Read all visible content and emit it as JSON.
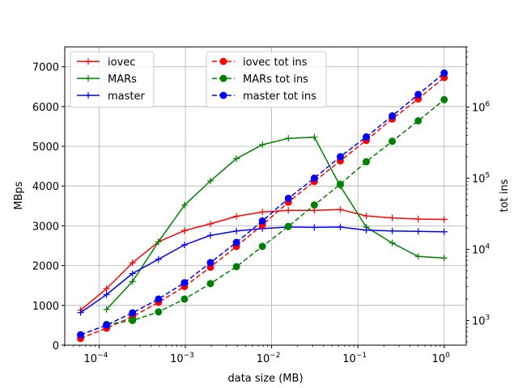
{
  "chart_data": {
    "type": "line",
    "xlabel": "data size (MB)",
    "ylabel": "MBps",
    "y2label": "tot ins",
    "x_scale": "log",
    "xlim": [
      4e-05,
      1.8
    ],
    "ylim": [
      0,
      7500
    ],
    "y2_scale": "log",
    "y2lim": [
      450,
      7000000
    ],
    "grid": true,
    "x_ticks": [
      {
        "base": "10",
        "exp": "−4",
        "value": 0.0001
      },
      {
        "base": "10",
        "exp": "−3",
        "value": 0.001
      },
      {
        "base": "10",
        "exp": "−2",
        "value": 0.01
      },
      {
        "base": "10",
        "exp": "−1",
        "value": 0.1
      },
      {
        "base": "10",
        "exp": "0",
        "value": 1
      }
    ],
    "y_ticks": [
      "0",
      "1000",
      "2000",
      "3000",
      "4000",
      "5000",
      "6000",
      "7000"
    ],
    "y2_ticks": [
      {
        "base": "10",
        "exp": "3",
        "value": 1000
      },
      {
        "base": "10",
        "exp": "4",
        "value": 10000
      },
      {
        "base": "10",
        "exp": "5",
        "value": 100000
      },
      {
        "base": "10",
        "exp": "6",
        "value": 1000000
      }
    ],
    "legend_left": {
      "placement": "upper-left",
      "entries": [
        "iovec",
        "MARs",
        "master"
      ]
    },
    "legend_right": {
      "placement": "upper-center",
      "entries": [
        "iovec tot ins",
        "MARs tot ins",
        "master tot ins"
      ]
    },
    "x": [
      6.104e-05,
      0.00012207,
      0.00024414,
      0.00048828,
      0.00097656,
      0.00195313,
      0.00390625,
      0.0078125,
      0.015625,
      0.03125,
      0.0625,
      0.125,
      0.25,
      0.5,
      1.0
    ],
    "series": [
      {
        "name": "iovec",
        "axis": "left",
        "style": "solid",
        "marker": "plus",
        "color": "#ff0000",
        "values": [
          880,
          1420,
          2070,
          2600,
          2880,
          3050,
          3240,
          3350,
          3390,
          3390,
          3410,
          3250,
          3200,
          3170,
          3160
        ]
      },
      {
        "name": "MARs",
        "axis": "left",
        "style": "solid",
        "marker": "plus",
        "color": "#008000",
        "values": [
          null,
          900,
          1600,
          2600,
          3520,
          4130,
          4690,
          5040,
          5200,
          5230,
          4000,
          2970,
          2570,
          2230,
          2190
        ]
      },
      {
        "name": "master",
        "axis": "left",
        "style": "solid",
        "marker": "plus",
        "color": "#0000ff",
        "values": [
          820,
          1270,
          1800,
          2160,
          2520,
          2760,
          2870,
          2930,
          2970,
          2960,
          2970,
          2890,
          2870,
          2860,
          2850
        ]
      },
      {
        "name": "iovec tot ins",
        "axis": "right",
        "style": "dashed",
        "marker": "circle",
        "color": "#ff0000",
        "values": [
          560,
          780,
          1130,
          1800,
          3000,
          5600,
          11000,
          22000,
          46000,
          90000,
          175000,
          340000,
          680000,
          1300000,
          2600000
        ]
      },
      {
        "name": "MARs tot ins",
        "axis": "right",
        "style": "dashed",
        "marker": "circle",
        "color": "#008000",
        "values": [
          null,
          880,
          1000,
          1320,
          2000,
          3300,
          5700,
          11000,
          21000,
          42000,
          82000,
          170000,
          330000,
          640000,
          1270000
        ]
      },
      {
        "name": "master tot ins",
        "axis": "right",
        "style": "dashed",
        "marker": "circle",
        "color": "#0000ff",
        "values": [
          630,
          860,
          1280,
          2000,
          3400,
          6500,
          12500,
          25000,
          52000,
          100000,
          200000,
          380000,
          750000,
          1500000,
          3000000
        ]
      }
    ]
  }
}
